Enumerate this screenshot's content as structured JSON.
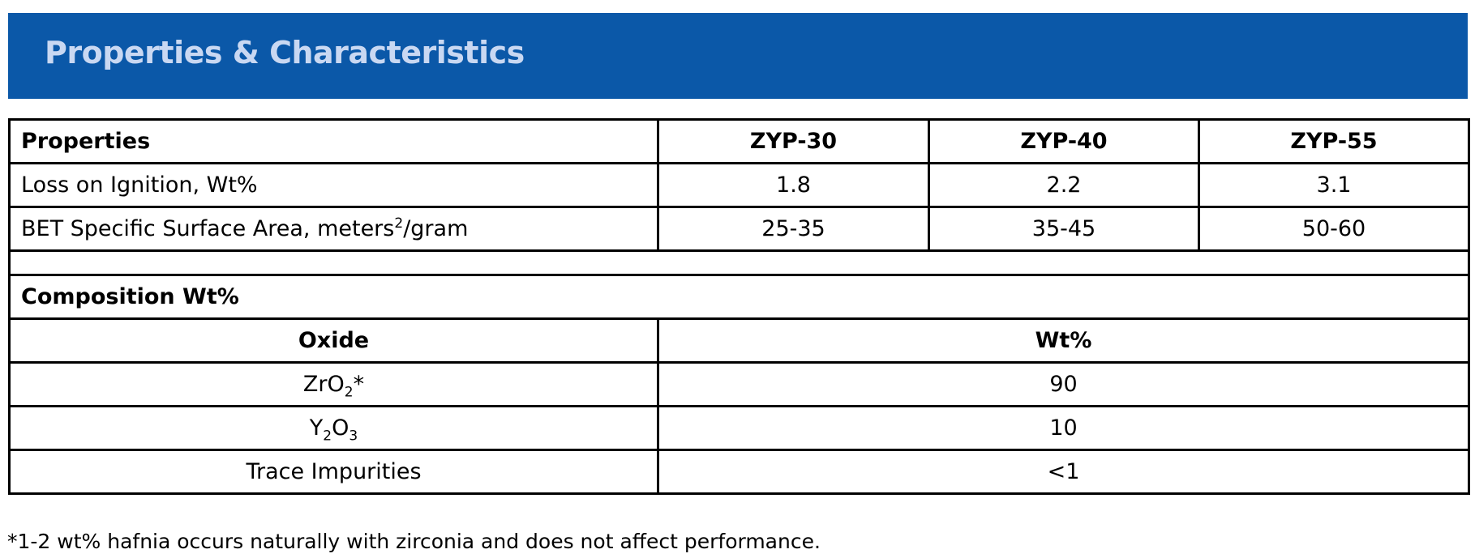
{
  "header": {
    "title": "Properties & Characteristics",
    "background_color": "#0b58a8",
    "title_color": "#c9d8f2"
  },
  "properties_table": {
    "header_label": "Properties",
    "columns": [
      "ZYP-30",
      "ZYP-40",
      "ZYP-55"
    ],
    "rows": [
      {
        "label": "Loss on Ignition, Wt%",
        "values": [
          "1.8",
          "2.2",
          "3.1"
        ]
      },
      {
        "label_prefix": "BET Specific Surface Area, meters",
        "label_superscript": "2",
        "label_suffix": "/gram",
        "values": [
          "25-35",
          "35-45",
          "50-60"
        ]
      }
    ]
  },
  "composition_table": {
    "title": "Composition Wt%",
    "col_oxide": "Oxide",
    "col_wt": "Wt%",
    "rows": [
      {
        "oxide_parts": [
          "Zr",
          "O",
          "2",
          "*"
        ],
        "wt": "90"
      },
      {
        "oxide_parts": [
          "Y",
          "2",
          "O",
          "3"
        ],
        "wt": "10"
      },
      {
        "oxide": "Trace Impurities",
        "wt": "<1"
      }
    ]
  },
  "footnote": "*1-2 wt% hafnia occurs naturally with zirconia and does not affect performance."
}
